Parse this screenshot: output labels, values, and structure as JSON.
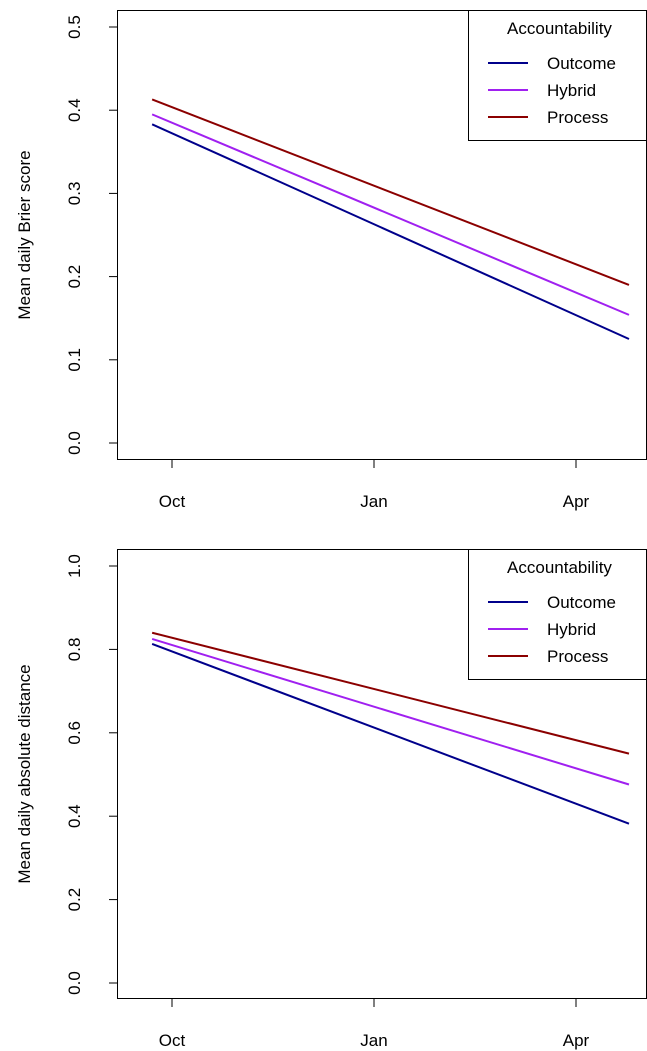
{
  "colors": {
    "Outcome": "#00008B",
    "Hybrid": "#A020F0",
    "Process": "#8B0000"
  },
  "chart_data": [
    {
      "type": "line",
      "ylabel": "Mean daily Brier score",
      "xlabel": "",
      "x_ticks": [
        "Oct",
        "Jan",
        "Apr"
      ],
      "y_ticks": [
        "0.0",
        "0.1",
        "0.2",
        "0.3",
        "0.4",
        "0.5"
      ],
      "ylim": [
        0,
        0.5
      ],
      "grid": false,
      "legend": {
        "title": "Accountability",
        "position": "top-right",
        "entries": [
          "Outcome",
          "Hybrid",
          "Process"
        ]
      },
      "series": [
        {
          "name": "Outcome",
          "x": [
            "2015-09-22",
            "2016-04-25"
          ],
          "values": [
            0.383,
            0.125
          ]
        },
        {
          "name": "Hybrid",
          "x": [
            "2015-09-22",
            "2016-04-25"
          ],
          "values": [
            0.395,
            0.154
          ]
        },
        {
          "name": "Process",
          "x": [
            "2015-09-22",
            "2016-04-25"
          ],
          "values": [
            0.413,
            0.19
          ]
        }
      ]
    },
    {
      "type": "line",
      "ylabel": "Mean daily absolute distance",
      "xlabel": "",
      "x_ticks": [
        "Oct",
        "Jan",
        "Apr"
      ],
      "y_ticks": [
        "0.0",
        "0.2",
        "0.4",
        "0.6",
        "0.8",
        "1.0"
      ],
      "ylim": [
        0,
        1.0
      ],
      "grid": false,
      "legend": {
        "title": "Accountability",
        "position": "top-right",
        "entries": [
          "Outcome",
          "Hybrid",
          "Process"
        ]
      },
      "series": [
        {
          "name": "Outcome",
          "x": [
            "2015-09-22",
            "2016-04-25"
          ],
          "values": [
            0.813,
            0.382
          ]
        },
        {
          "name": "Hybrid",
          "x": [
            "2015-09-22",
            "2016-04-25"
          ],
          "values": [
            0.825,
            0.476
          ]
        },
        {
          "name": "Process",
          "x": [
            "2015-09-22",
            "2016-04-25"
          ],
          "values": [
            0.84,
            0.55
          ]
        }
      ]
    }
  ]
}
